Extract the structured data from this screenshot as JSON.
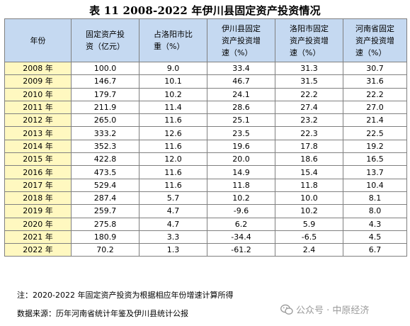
{
  "title": "表 11 2008-2022 年伊川县固定资产投资情况",
  "table": {
    "headers": [
      [
        "年份"
      ],
      [
        "固定资产投",
        "资（亿元）"
      ],
      [
        "占洛阳市比",
        "重（%）"
      ],
      [
        "伊川县固定",
        "资产投资增",
        "速（%）"
      ],
      [
        "洛阳市固定",
        "资产投资增",
        "速（%）"
      ],
      [
        "河南省固定",
        "资产投资增",
        "速（%）"
      ]
    ],
    "rows": [
      [
        "2008 年",
        "100.0",
        "9.0",
        "33.4",
        "31.3",
        "30.7"
      ],
      [
        "2009 年",
        "146.7",
        "10.1",
        "46.7",
        "31.5",
        "31.6"
      ],
      [
        "2010 年",
        "179.7",
        "10.2",
        "24.1",
        "22.2",
        "22.2"
      ],
      [
        "2011 年",
        "211.9",
        "11.4",
        "28.6",
        "27.4",
        "27.0"
      ],
      [
        "2012 年",
        "265.0",
        "11.6",
        "25.1",
        "23.2",
        "21.4"
      ],
      [
        "2013 年",
        "333.2",
        "12.6",
        "23.5",
        "22.3",
        "22.5"
      ],
      [
        "2014 年",
        "352.3",
        "11.6",
        "19.6",
        "17.8",
        "19.2"
      ],
      [
        "2015 年",
        "422.8",
        "12.0",
        "20.0",
        "18.6",
        "16.5"
      ],
      [
        "2016 年",
        "473.5",
        "11.6",
        "14.9",
        "15.4",
        "13.7"
      ],
      [
        "2017 年",
        "529.4",
        "11.6",
        "11.8",
        "11.8",
        "10.4"
      ],
      [
        "2018 年",
        "287.4",
        "5.7",
        "10.2",
        "10.0",
        "8.1"
      ],
      [
        "2019 年",
        "259.7",
        "4.7",
        "-9.6",
        "10.2",
        "8.0"
      ],
      [
        "2020 年",
        "275.8",
        "4.7",
        "6.2",
        "5.9",
        "4.3"
      ],
      [
        "2021 年",
        "180.9",
        "3.3",
        "-34.4",
        "-6.5",
        "4.5"
      ],
      [
        "2022 年",
        "70.2",
        "1.3",
        "-61.2",
        "2.4",
        "6.7"
      ]
    ]
  },
  "note": "注：2020-2022 年固定资产投资为根据相应年份增速计算所得",
  "source": "数据来源：历年河南省统计年鉴及伊川县统计公报",
  "watermark": {
    "text": "公众号 · 中原经济",
    "icon": "wechat-icon"
  },
  "colors": {
    "header_bg": "#c5d9f1",
    "year_bg": "#fff8c0",
    "border": "#808080",
    "watermark": "#9a9a9a"
  }
}
